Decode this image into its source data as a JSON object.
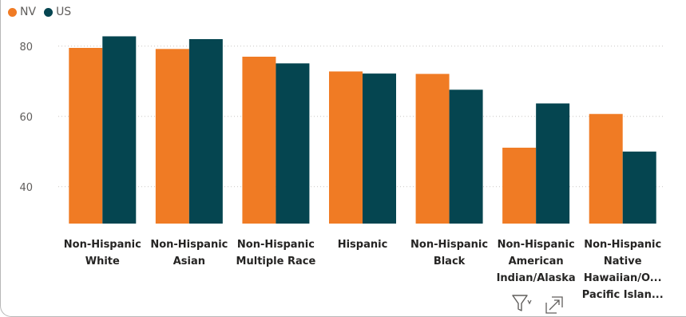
{
  "chart_data": {
    "type": "bar",
    "categories": [
      [
        "Non-Hispanic",
        "White"
      ],
      [
        "Non-Hispanic",
        "Asian"
      ],
      [
        "Non-Hispanic",
        "Multiple Race"
      ],
      [
        "Hispanic"
      ],
      [
        "Non-Hispanic",
        "Black"
      ],
      [
        "Non-Hispanic",
        "American",
        "Indian/Alaska"
      ],
      [
        "Non-Hispanic",
        "Native",
        "Hawaiian/O...",
        "Pacific Islan..."
      ]
    ],
    "series": [
      {
        "name": "NV",
        "color": "#f07b24",
        "values": [
          79.5,
          79.2,
          77.0,
          72.8,
          72.1,
          51.1,
          60.7
        ]
      },
      {
        "name": "US",
        "color": "#054550",
        "values": [
          82.8,
          82.0,
          75.1,
          72.2,
          67.6,
          63.7,
          50.0
        ]
      }
    ],
    "yticks": [
      40,
      60,
      80
    ],
    "ylim": [
      29.5,
      86
    ],
    "grid": true,
    "legend_position": "top-left"
  },
  "icons": {
    "filter": "filter-icon",
    "expand": "focus-mode-icon"
  }
}
